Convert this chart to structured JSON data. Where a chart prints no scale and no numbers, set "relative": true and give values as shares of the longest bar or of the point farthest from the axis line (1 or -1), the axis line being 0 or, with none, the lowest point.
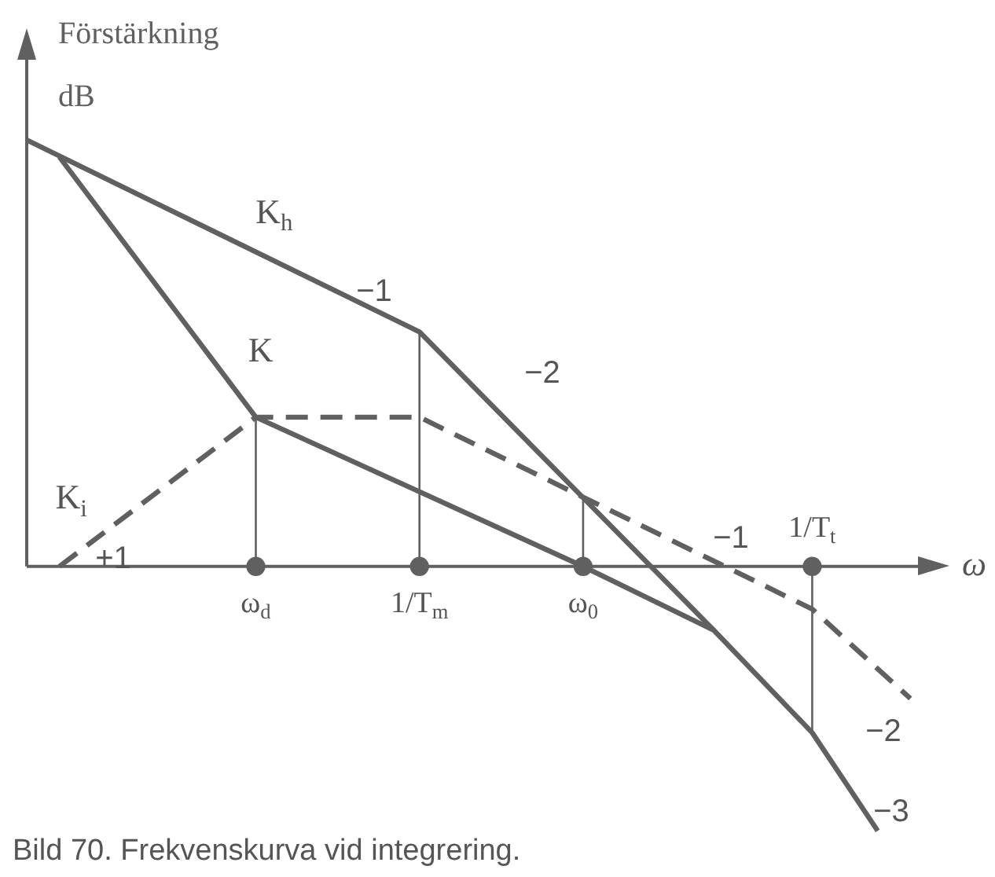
{
  "chart_data": {
    "type": "line",
    "relative": true,
    "ylabel": "Förstärkning\ndB",
    "xlabel": "ω",
    "categories": [
      null,
      null,
      null,
      null,
      null,
      null,
      null,
      "ω$_{d}$",
      null,
      null,
      null,
      null,
      "1/T$_{m}$",
      null,
      null,
      null,
      null,
      "ω$_{0}$",
      null,
      null,
      null,
      null,
      null,
      null,
      "1/T$_{t}$",
      null,
      null,
      null,
      null
    ],
    "grid": false,
    "legend": false,
    "marker": "none",
    "series": [
      {
        "name": "K$_{h}$",
        "color": "#606060",
        "line_style": "solid",
        "values": [
          1,
          null,
          null,
          null,
          null,
          null,
          null,
          null,
          null,
          null,
          null,
          null,
          0.55,
          null,
          null,
          null,
          null,
          null,
          null,
          null,
          null,
          -0.15,
          null,
          null,
          null,
          null,
          null,
          null,
          null
        ]
      },
      {
        "name": "K",
        "color": "#606060",
        "line_style": "solid",
        "values": [
          null,
          0.96,
          null,
          null,
          null,
          null,
          null,
          0.35,
          null,
          null,
          null,
          null,
          null,
          null,
          null,
          null,
          null,
          0,
          null,
          null,
          null,
          -0.15,
          null,
          null,
          -0.39,
          null,
          -0.62,
          null,
          null
        ]
      },
      {
        "name": "K$_{i}$",
        "color": "#606060",
        "line_style": "dashed",
        "values": [
          null,
          0,
          null,
          null,
          null,
          null,
          null,
          0.35,
          null,
          null,
          null,
          null,
          0.35,
          null,
          null,
          null,
          null,
          null,
          null,
          null,
          null,
          null,
          null,
          null,
          -0.1,
          null,
          null,
          -0.31,
          null
        ]
      },
      {
        "type": "scatter",
        "color": "#606060",
        "marker": "circle",
        "values": [
          null,
          null,
          null,
          null,
          null,
          null,
          null,
          0,
          null,
          null,
          null,
          null,
          0,
          null,
          null,
          null,
          null,
          0,
          null,
          null,
          null,
          null,
          null,
          null,
          0,
          null,
          null,
          null,
          null
        ]
      }
    ],
    "ref_lines": [
      {
        "axis": "x",
        "value": "ω$_{d}$",
        "color": "#606060"
      },
      {
        "axis": "x",
        "value": "1/T$_{m}$",
        "color": "#606060"
      },
      {
        "axis": "x",
        "value": "ω$_{0}$",
        "color": "#606060"
      },
      {
        "axis": "x",
        "value": "1/T$_{t}$",
        "color": "#606060"
      }
    ],
    "annotations": [
      "−1",
      "−2",
      "+1",
      "−1",
      "−2",
      "−3",
      "Bild 70. Frekvenskurva vid integrering."
    ]
  }
}
